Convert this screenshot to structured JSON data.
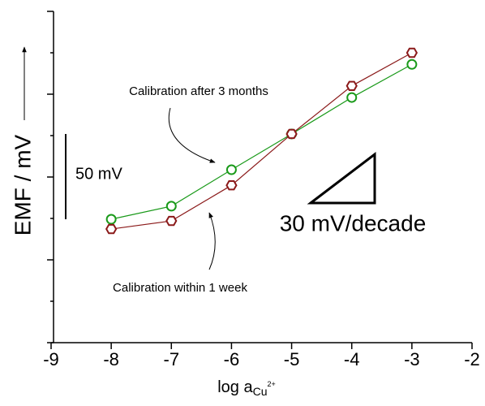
{
  "chart_data": {
    "type": "line",
    "x_label": "log a",
    "x_label_sub": "Cu",
    "x_label_sup": "2+",
    "y_label": "EMF / mV",
    "x": [
      -8,
      -7,
      -6,
      -5,
      -4,
      -3
    ],
    "series": [
      {
        "name": "Calibration after 3 months",
        "color": "#1a9a1a",
        "marker": "circle",
        "values": [
          74.5,
          82.4,
          104.4,
          126,
          148,
          168
        ]
      },
      {
        "name": "Calibration within 1 week",
        "color": "#8b1a1a",
        "marker": "hexagon",
        "values": [
          68.6,
          73.5,
          95,
          126,
          155,
          175
        ]
      }
    ],
    "xlim": [
      -9,
      -2
    ],
    "xticks": [
      -9,
      -8,
      -7,
      -6,
      -5,
      -4,
      -3,
      -2
    ],
    "ylim": [
      0,
      200
    ],
    "yticks": [
      0,
      25,
      50,
      75,
      100,
      125,
      150,
      175,
      200
    ],
    "annotations": [
      "50 mV",
      "30 mV/decade"
    ]
  }
}
